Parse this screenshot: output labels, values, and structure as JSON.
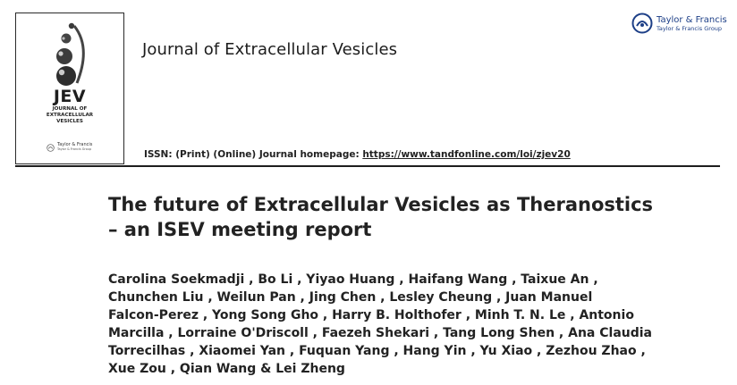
{
  "cover": {
    "short_title": "JEV",
    "full_title_lines": [
      "JOURNAL OF",
      "EXTRACELLULAR",
      "VESICLES"
    ],
    "publisher_name": "Taylor & Francis",
    "publisher_group": "Taylor & Francis Group"
  },
  "journal_title": "Journal of Extracellular Vesicles",
  "publisher": {
    "name": "Taylor & Francis",
    "group": "Taylor & Francis Group",
    "logo_icon": "taylor-francis-logo-icon",
    "brand_color": "#1d3f87"
  },
  "issn": {
    "prefix": "ISSN: (Print) (Online) Journal homepage: ",
    "homepage_url_text": "https://www.tandfonline.com/loi/zjev20"
  },
  "article": {
    "title_lines": [
      "The future of Extracellular Vesicles as Theranostics",
      "– an ISEV meeting report"
    ],
    "author_lines": [
      "Carolina Soekmadji , Bo Li , Yiyao Huang , Haifang Wang , Taixue An ,",
      "Chunchen Liu , Weilun Pan , Jing Chen , Lesley Cheung , Juan Manuel",
      "Falcon-Perez , Yong Song Gho , Harry B. Holthofer , Minh T. N. Le , Antonio",
      "Marcilla , Lorraine O'Driscoll , Faezeh Shekari , Tang Long Shen , Ana Claudia",
      "Torrecilhas , Xiaomei Yan , Fuquan Yang , Hang Yin , Yu Xiao , Zezhou Zhao ,",
      "Xue Zou , Qian Wang & Lei Zheng"
    ]
  }
}
